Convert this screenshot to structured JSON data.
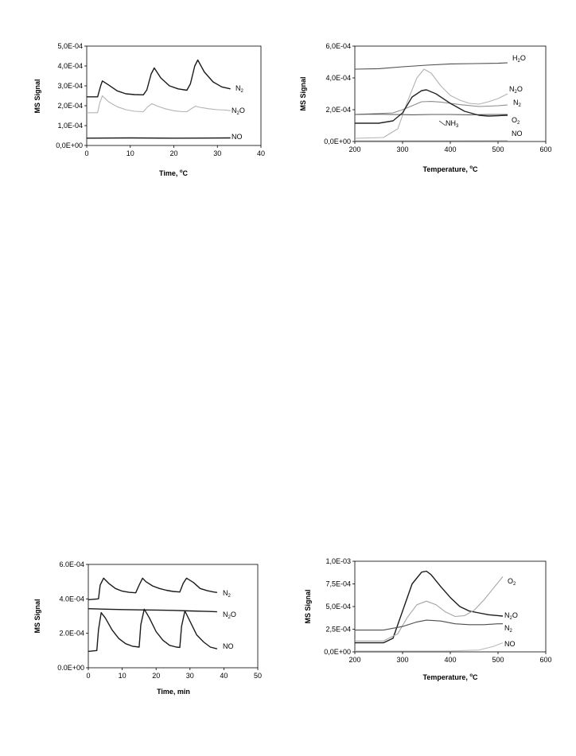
{
  "chart_data": [
    {
      "type": "line",
      "ylabel": "MS Signal",
      "xlabel": "Time, °C",
      "xlim": [
        0,
        40
      ],
      "ylim": [
        0,
        0.0005
      ],
      "xticks": [
        "0",
        "10",
        "20",
        "30",
        "40"
      ],
      "yticks": [
        "0,0E+00",
        "1,0E-04",
        "2,0E-04",
        "3,0E-04",
        "4,0E-04",
        "5,0E-04"
      ],
      "grid": false,
      "series": [
        {
          "name": "N2",
          "color": "#1a1a1a",
          "x": [
            0,
            2.5,
            3.2,
            3.6,
            5,
            7,
            9,
            11,
            13,
            13.8,
            14.8,
            15.5,
            17,
            19,
            21,
            23,
            23.8,
            24.8,
            25.5,
            27,
            29,
            31,
            33
          ],
          "y": [
            0.000245,
            0.000245,
            0.0003,
            0.000325,
            0.000305,
            0.000275,
            0.00026,
            0.000256,
            0.000255,
            0.00028,
            0.00036,
            0.00039,
            0.00034,
            0.0003,
            0.000285,
            0.000278,
            0.00031,
            0.0004,
            0.00043,
            0.00037,
            0.00032,
            0.000295,
            0.000285
          ]
        },
        {
          "name": "N2O",
          "color": "#b3b3b3",
          "x": [
            0,
            2.5,
            3,
            3.6,
            5,
            7,
            9,
            11,
            13,
            14,
            15,
            16,
            18,
            20,
            22,
            23,
            24,
            25,
            26,
            28,
            30,
            32,
            33
          ],
          "y": [
            0.000165,
            0.000165,
            0.000215,
            0.00025,
            0.00022,
            0.000195,
            0.00018,
            0.000172,
            0.00017,
            0.000195,
            0.00021,
            0.0002,
            0.000185,
            0.000175,
            0.00017,
            0.00017,
            0.000185,
            0.000198,
            0.000192,
            0.000185,
            0.00018,
            0.000178,
            0.000175
          ]
        },
        {
          "name": "NO",
          "color": "#1a1a1a",
          "x": [
            0,
            10,
            20,
            33
          ],
          "y": [
            3.7e-05,
            3.8e-05,
            3.7e-05,
            3.8e-05
          ]
        }
      ]
    },
    {
      "type": "line",
      "ylabel": "MS Signal",
      "xlabel": "Temperature, °C",
      "xlim": [
        200,
        600
      ],
      "ylim": [
        0,
        0.0006
      ],
      "xticks": [
        "200",
        "300",
        "400",
        "500",
        "600"
      ],
      "yticks": [
        "0,0E+00",
        "2,0E-04",
        "4,0E-04",
        "6,0E-04"
      ],
      "grid": false,
      "series": [
        {
          "name": "H2O",
          "color": "#4d4d4d",
          "x": [
            200,
            250,
            300,
            350,
            400,
            450,
            500,
            520
          ],
          "y": [
            0.000455,
            0.000458,
            0.00047,
            0.00048,
            0.000488,
            0.00049,
            0.000492,
            0.000495
          ]
        },
        {
          "name": "N2O",
          "color": "#b3b3b3",
          "x": [
            200,
            260,
            290,
            310,
            330,
            345,
            360,
            380,
            400,
            420,
            440,
            460,
            480,
            500,
            520
          ],
          "y": [
            2e-05,
            2.5e-05,
            8e-05,
            0.00025,
            0.0004,
            0.000455,
            0.00043,
            0.00035,
            0.00029,
            0.00026,
            0.00024,
            0.000235,
            0.00025,
            0.00027,
            0.0003
          ]
        },
        {
          "name": "N2",
          "color": "#8c8c8c",
          "x": [
            200,
            280,
            300,
            320,
            340,
            360,
            380,
            400,
            420,
            460,
            500,
            520
          ],
          "y": [
            0.00017,
            0.00018,
            0.0002,
            0.000225,
            0.00025,
            0.000252,
            0.000248,
            0.00024,
            0.000232,
            0.00022,
            0.000225,
            0.00023
          ]
        },
        {
          "name": "O2",
          "color": "#595959",
          "x": [
            200,
            240,
            280,
            320,
            360,
            400,
            440,
            480,
            520
          ],
          "y": [
            0.00017,
            0.000172,
            0.00017,
            0.000168,
            0.00017,
            0.00017,
            0.000168,
            0.00017,
            0.00017
          ]
        },
        {
          "name": "NH3",
          "color": "#262626",
          "x": [
            200,
            250,
            280,
            300,
            320,
            340,
            350,
            370,
            400,
            430,
            460,
            480,
            500,
            520
          ],
          "y": [
            0.000115,
            0.000115,
            0.00013,
            0.00018,
            0.00028,
            0.00032,
            0.000325,
            0.0003,
            0.00024,
            0.00019,
            0.000165,
            0.00016,
            0.000162,
            0.000165
          ]
        },
        {
          "name": "NO",
          "color": "#bfbfbf",
          "x": [
            200,
            300,
            400,
            520
          ],
          "y": [
            5e-06,
            5e-06,
            5e-06,
            6e-06
          ]
        }
      ]
    },
    {
      "type": "line",
      "ylabel": "MS Signal",
      "xlabel": "Time, min",
      "xlim": [
        0,
        50
      ],
      "ylim": [
        0,
        0.0006
      ],
      "xticks": [
        "0",
        "10",
        "20",
        "30",
        "40",
        "50"
      ],
      "yticks": [
        "0.0E+00",
        "2.0E-04",
        "4.0E-04",
        "6.0E-04"
      ],
      "grid": false,
      "series": [
        {
          "name": "N2",
          "color": "#1a1a1a",
          "x": [
            0,
            3,
            3.5,
            4.5,
            6,
            8,
            10,
            12,
            14,
            15,
            16,
            17,
            19,
            21,
            23,
            25,
            27,
            28,
            29,
            31,
            33,
            35,
            37,
            38
          ],
          "y": [
            0.000395,
            0.0004,
            0.00048,
            0.00052,
            0.00049,
            0.00046,
            0.000445,
            0.000438,
            0.000435,
            0.00048,
            0.00052,
            0.0005,
            0.000475,
            0.00046,
            0.00045,
            0.000443,
            0.00044,
            0.00049,
            0.00052,
            0.000495,
            0.00046,
            0.000448,
            0.00044,
            0.000437
          ]
        },
        {
          "name": "N2O",
          "color": "#1a1a1a",
          "x": [
            0,
            5,
            10,
            15,
            20,
            25,
            30,
            35,
            38
          ],
          "y": [
            0.000343,
            0.00034,
            0.000338,
            0.000336,
            0.000335,
            0.000333,
            0.00033,
            0.000327,
            0.000325
          ]
        },
        {
          "name": "NO",
          "color": "#1a1a1a",
          "x": [
            0,
            2.5,
            3,
            3.8,
            5,
            7,
            9,
            11,
            13,
            15,
            15.5,
            16.5,
            18,
            20,
            22,
            24,
            26,
            27,
            27.5,
            28.5,
            30,
            32,
            34,
            36,
            38
          ],
          "y": [
            9.5e-05,
            0.0001,
            0.00022,
            0.00032,
            0.00029,
            0.00022,
            0.00017,
            0.00014,
            0.000125,
            0.00012,
            0.00025,
            0.00034,
            0.00029,
            0.00021,
            0.00016,
            0.00013,
            0.00012,
            0.000118,
            0.00024,
            0.00033,
            0.00027,
            0.00019,
            0.00015,
            0.00012,
            0.00011
          ]
        }
      ]
    },
    {
      "type": "line",
      "ylabel": "MS Signal",
      "xlabel": "Temperature, °C",
      "xlim": [
        200,
        600
      ],
      "ylim": [
        0,
        0.001
      ],
      "xticks": [
        "200",
        "300",
        "400",
        "500",
        "600"
      ],
      "yticks": [
        "0,0E+00",
        "2,5E-04",
        "5,0E-04",
        "7,5E-04",
        "1,0E-03"
      ],
      "grid": false,
      "series": [
        {
          "name": "N2O",
          "color": "#1a1a1a",
          "x": [
            200,
            260,
            280,
            300,
            320,
            340,
            350,
            360,
            380,
            400,
            420,
            440,
            460,
            480,
            500,
            510
          ],
          "y": [
            0.0001,
            0.0001,
            0.00015,
            0.00045,
            0.00075,
            0.00088,
            0.00089,
            0.00085,
            0.00072,
            0.0006,
            0.0005,
            0.00045,
            0.00043,
            0.00041,
            0.0004,
            0.000395
          ]
        },
        {
          "name": "O2",
          "color": "#a6a6a6",
          "x": [
            200,
            260,
            290,
            310,
            330,
            350,
            370,
            390,
            410,
            430,
            450,
            470,
            490,
            510
          ],
          "y": [
            0.00012,
            0.00012,
            0.0002,
            0.00038,
            0.00052,
            0.00056,
            0.00052,
            0.00044,
            0.00039,
            0.0004,
            0.00046,
            0.00057,
            0.0007,
            0.00083
          ]
        },
        {
          "name": "N2",
          "color": "#4d4d4d",
          "x": [
            200,
            260,
            300,
            330,
            350,
            380,
            410,
            440,
            470,
            500,
            510
          ],
          "y": [
            0.00024,
            0.00024,
            0.00028,
            0.00033,
            0.00035,
            0.00034,
            0.00031,
            0.0003,
            0.0003,
            0.00031,
            0.00031
          ]
        },
        {
          "name": "NO",
          "color": "#bfbfbf",
          "x": [
            200,
            300,
            400,
            460,
            490,
            510
          ],
          "y": [
            1e-05,
            1e-05,
            1e-05,
            2e-05,
            6e-05,
            0.0001
          ]
        }
      ]
    }
  ],
  "panels": [
    {
      "ylabel": "MS Signal",
      "xlabel_main": "Time, ",
      "xlabel_deg": "o",
      "xlabel_unit": "C",
      "yticks": [
        "0,0E+00",
        "1,0E-04",
        "2,0E-04",
        "3,0E-04",
        "4,0E-04",
        "5,0E-04"
      ],
      "xticks": [
        "0",
        "10",
        "20",
        "30",
        "40"
      ],
      "labels": [
        {
          "main": "N",
          "sub": "2",
          "tail": ""
        },
        {
          "main": "N",
          "sub": "2",
          "tail": "O"
        },
        {
          "main": "NO",
          "sub": "",
          "tail": ""
        }
      ]
    },
    {
      "ylabel": "MS Signal",
      "xlabel_main": "Temperature, ",
      "xlabel_deg": "o",
      "xlabel_unit": "C",
      "yticks": [
        "0,0E+00",
        "2,0E-04",
        "4,0E-04",
        "6,0E-04"
      ],
      "xticks": [
        "200",
        "300",
        "400",
        "500",
        "600"
      ],
      "labels": [
        {
          "main": "H",
          "sub": "2",
          "tail": "O"
        },
        {
          "main": "N",
          "sub": "2",
          "tail": "O"
        },
        {
          "main": "N",
          "sub": "2",
          "tail": ""
        },
        {
          "main": "O",
          "sub": "2",
          "tail": ""
        },
        {
          "main": "NH",
          "sub": "3",
          "tail": ""
        },
        {
          "main": "NO",
          "sub": "",
          "tail": ""
        }
      ]
    },
    {
      "ylabel": "MS Signal",
      "xlabel_main": "Time, min",
      "xlabel_deg": "",
      "xlabel_unit": "",
      "yticks": [
        "0.0E+00",
        "2.0E-04",
        "4.0E-04",
        "6.0E-04"
      ],
      "xticks": [
        "0",
        "10",
        "20",
        "30",
        "40",
        "50"
      ],
      "labels": [
        {
          "main": "N",
          "sub": "2",
          "tail": ""
        },
        {
          "main": "N",
          "sub": "2",
          "tail": "O"
        },
        {
          "main": "NO",
          "sub": "",
          "tail": ""
        }
      ]
    },
    {
      "ylabel": "MS Signal",
      "xlabel_main": "Temperature, ",
      "xlabel_deg": "o",
      "xlabel_unit": "C",
      "yticks": [
        "0,0E+00",
        "2,5E-04",
        "5,0E-04",
        "7,5E-04",
        "1,0E-03"
      ],
      "xticks": [
        "200",
        "300",
        "400",
        "500",
        "600"
      ],
      "labels": [
        {
          "main": "O",
          "sub": "2",
          "tail": ""
        },
        {
          "main": "N",
          "sub": "2",
          "tail": "O"
        },
        {
          "main": "N",
          "sub": "2",
          "tail": ""
        },
        {
          "main": "NO",
          "sub": "",
          "tail": ""
        }
      ]
    }
  ]
}
